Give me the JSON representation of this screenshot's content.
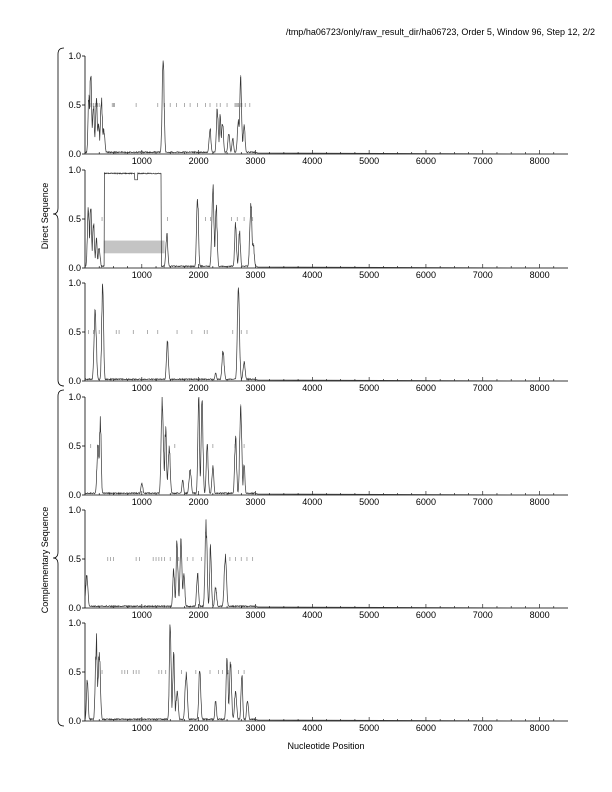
{
  "header": {
    "path": "/tmp/ha06723/only/raw_result_dir/ha06723, Order 5, Window 96, Step 12, 2/2"
  },
  "groups": {
    "direct": "Direct Sequence",
    "complementary": "Complementary Sequence"
  },
  "xlabel": "Nucleotide Position",
  "chart_data": [
    {
      "type": "line",
      "panel": 1,
      "group": "Direct Sequence",
      "xlim": [
        0,
        8500
      ],
      "ylim": [
        0,
        1
      ],
      "yticks": [
        "0.0",
        "0.5",
        "1.0"
      ],
      "xticks": [
        "1000",
        "2000",
        "3000",
        "4000",
        "5000",
        "6000",
        "7000",
        "8000"
      ],
      "peaks": [
        [
          70,
          0.6
        ],
        [
          100,
          0.78
        ],
        [
          150,
          0.45
        ],
        [
          200,
          0.55
        ],
        [
          240,
          0.3
        ],
        [
          290,
          0.52
        ],
        [
          330,
          0.25
        ],
        [
          1375,
          0.95
        ],
        [
          2200,
          0.25
        ],
        [
          2330,
          0.45
        ],
        [
          2380,
          0.38
        ],
        [
          2420,
          0.3
        ],
        [
          2530,
          0.2
        ],
        [
          2600,
          0.15
        ],
        [
          2700,
          0.35
        ],
        [
          2740,
          0.8
        ],
        [
          2800,
          0.3
        ]
      ],
      "threshold_ticks": [
        [
          90,
          0.5
        ],
        [
          120,
          0.5
        ],
        [
          150,
          0.5
        ],
        [
          180,
          0.5
        ],
        [
          220,
          0.5
        ],
        [
          250,
          0.5
        ],
        [
          480,
          0.5
        ],
        [
          500,
          0.5
        ],
        [
          520,
          0.5
        ],
        [
          900,
          0.5
        ],
        [
          1280,
          0.5
        ],
        [
          1400,
          0.5
        ],
        [
          1500,
          0.5
        ],
        [
          1610,
          0.5
        ],
        [
          1750,
          0.5
        ],
        [
          1850,
          0.5
        ],
        [
          1980,
          0.5
        ],
        [
          2120,
          0.5
        ],
        [
          2200,
          0.5
        ],
        [
          2320,
          0.5
        ],
        [
          2380,
          0.5
        ],
        [
          2500,
          0.5
        ],
        [
          2640,
          0.5
        ],
        [
          2660,
          0.5
        ],
        [
          2680,
          0.5
        ],
        [
          2700,
          0.5
        ],
        [
          2730,
          0.5
        ],
        [
          2760,
          0.5
        ],
        [
          2820,
          0.5
        ],
        [
          2900,
          0.5
        ]
      ]
    },
    {
      "type": "line",
      "panel": 2,
      "group": "Direct Sequence",
      "xlim": [
        0,
        8500
      ],
      "ylim": [
        0,
        1
      ],
      "yticks": [
        "0.0",
        "0.5",
        "1.0"
      ],
      "xticks": [
        "1000",
        "2000",
        "3000",
        "4000",
        "5000",
        "6000",
        "7000",
        "8000"
      ],
      "peaks": [
        [
          60,
          0.58
        ],
        [
          100,
          0.6
        ],
        [
          150,
          0.42
        ],
        [
          200,
          0.3
        ],
        [
          250,
          0.2
        ],
        [
          1440,
          0.35
        ],
        [
          1980,
          0.7
        ],
        [
          2250,
          0.8
        ],
        [
          2310,
          0.6
        ],
        [
          2650,
          0.42
        ],
        [
          2720,
          0.35
        ],
        [
          2920,
          0.62
        ],
        [
          2960,
          0.25
        ]
      ],
      "plateau": {
        "x": [
          340,
          1340
        ],
        "y": 0.97,
        "dip": [
          900,
          0.9
        ]
      },
      "highlight_band": {
        "x": [
          330,
          1400
        ],
        "y": [
          0.15,
          0.28
        ]
      },
      "threshold_ticks": [
        [
          300,
          0.5
        ],
        [
          1450,
          0.5
        ],
        [
          2120,
          0.5
        ],
        [
          2210,
          0.5
        ],
        [
          2580,
          0.5
        ],
        [
          2680,
          0.5
        ],
        [
          2800,
          0.5
        ],
        [
          2950,
          0.5
        ]
      ]
    },
    {
      "type": "line",
      "panel": 3,
      "group": "Direct Sequence",
      "xlim": [
        0,
        8500
      ],
      "ylim": [
        0,
        1
      ],
      "yticks": [
        "0.0",
        "0.5",
        "1.0"
      ],
      "xticks": [
        "1000",
        "2000",
        "3000",
        "4000",
        "5000",
        "6000",
        "7000",
        "8000"
      ],
      "peaks": [
        [
          180,
          0.72
        ],
        [
          310,
          0.97
        ],
        [
          1450,
          0.4
        ],
        [
          2300,
          0.08
        ],
        [
          2430,
          0.28
        ],
        [
          2700,
          0.95
        ],
        [
          2800,
          0.2
        ]
      ],
      "threshold_ticks": [
        [
          60,
          0.5
        ],
        [
          150,
          0.5
        ],
        [
          250,
          0.5
        ],
        [
          550,
          0.5
        ],
        [
          600,
          0.5
        ],
        [
          850,
          0.5
        ],
        [
          1100,
          0.5
        ],
        [
          1280,
          0.5
        ],
        [
          1620,
          0.5
        ],
        [
          1880,
          0.5
        ],
        [
          2100,
          0.5
        ],
        [
          2150,
          0.5
        ],
        [
          2600,
          0.5
        ],
        [
          2750,
          0.5
        ],
        [
          2850,
          0.5
        ]
      ]
    },
    {
      "type": "line",
      "panel": 4,
      "group": "Complementary Sequence",
      "xlim": [
        0,
        8500
      ],
      "ylim": [
        0,
        1
      ],
      "yticks": [
        "0.0",
        "0.5",
        "1.0"
      ],
      "xticks": [
        "1000",
        "2000",
        "3000",
        "4000",
        "5000",
        "6000",
        "7000",
        "8000"
      ],
      "peaks": [
        [
          230,
          0.5
        ],
        [
          270,
          0.8
        ],
        [
          1000,
          0.12
        ],
        [
          1360,
          0.9
        ],
        [
          1420,
          0.7
        ],
        [
          1480,
          0.5
        ],
        [
          1720,
          0.15
        ],
        [
          1850,
          0.25
        ],
        [
          2000,
          0.98
        ],
        [
          2060,
          0.95
        ],
        [
          2150,
          0.5
        ],
        [
          2250,
          0.3
        ],
        [
          2650,
          0.6
        ],
        [
          2740,
          0.92
        ],
        [
          2800,
          0.3
        ]
      ],
      "threshold_ticks": [
        [
          100,
          0.5
        ],
        [
          1580,
          0.5
        ],
        [
          2150,
          0.5
        ],
        [
          2250,
          0.5
        ],
        [
          2640,
          0.5
        ],
        [
          2800,
          0.5
        ]
      ]
    },
    {
      "type": "line",
      "panel": 5,
      "group": "Complementary Sequence",
      "xlim": [
        0,
        8500
      ],
      "ylim": [
        0,
        1
      ],
      "yticks": [
        "0.0",
        "0.5",
        "1.0"
      ],
      "xticks": [
        "1000",
        "2000",
        "3000",
        "4000",
        "5000",
        "6000",
        "7000",
        "8000"
      ],
      "peaks": [
        [
          30,
          0.32
        ],
        [
          1560,
          0.4
        ],
        [
          1620,
          0.65
        ],
        [
          1690,
          0.7
        ],
        [
          1740,
          0.35
        ],
        [
          1980,
          0.35
        ],
        [
          2130,
          0.9
        ],
        [
          2210,
          0.65
        ],
        [
          2300,
          0.2
        ],
        [
          2470,
          0.55
        ]
      ],
      "threshold_ticks": [
        [
          400,
          0.5
        ],
        [
          450,
          0.5
        ],
        [
          500,
          0.5
        ],
        [
          900,
          0.5
        ],
        [
          960,
          0.5
        ],
        [
          1200,
          0.5
        ],
        [
          1250,
          0.5
        ],
        [
          1300,
          0.5
        ],
        [
          1350,
          0.5
        ],
        [
          1400,
          0.5
        ],
        [
          1500,
          0.5
        ],
        [
          1650,
          0.5
        ],
        [
          1800,
          0.5
        ],
        [
          1900,
          0.5
        ],
        [
          2050,
          0.5
        ],
        [
          2550,
          0.5
        ],
        [
          2650,
          0.5
        ],
        [
          2750,
          0.5
        ],
        [
          2850,
          0.5
        ],
        [
          2950,
          0.5
        ]
      ]
    },
    {
      "type": "line",
      "panel": 6,
      "group": "Complementary Sequence",
      "xlim": [
        0,
        8500
      ],
      "ylim": [
        0,
        1
      ],
      "yticks": [
        "0.0",
        "0.5",
        "1.0"
      ],
      "xticks": [
        "1000",
        "2000",
        "3000",
        "4000",
        "5000",
        "6000",
        "7000",
        "8000"
      ],
      "peaks": [
        [
          40,
          0.4
        ],
        [
          200,
          0.8
        ],
        [
          250,
          0.7
        ],
        [
          1500,
          0.95
        ],
        [
          1560,
          0.7
        ],
        [
          1620,
          0.3
        ],
        [
          1780,
          0.5
        ],
        [
          2020,
          0.5
        ],
        [
          2300,
          0.2
        ],
        [
          2500,
          0.62
        ],
        [
          2560,
          0.55
        ],
        [
          2650,
          0.3
        ],
        [
          2760,
          0.45
        ],
        [
          2860,
          0.2
        ]
      ],
      "threshold_ticks": [
        [
          300,
          0.5
        ],
        [
          650,
          0.5
        ],
        [
          700,
          0.5
        ],
        [
          750,
          0.5
        ],
        [
          850,
          0.5
        ],
        [
          900,
          0.5
        ],
        [
          950,
          0.5
        ],
        [
          1300,
          0.5
        ],
        [
          1350,
          0.5
        ],
        [
          1420,
          0.5
        ],
        [
          1700,
          0.5
        ],
        [
          1950,
          0.5
        ],
        [
          2200,
          0.5
        ],
        [
          2350,
          0.5
        ],
        [
          2420,
          0.5
        ],
        [
          2520,
          0.5
        ],
        [
          2700,
          0.5
        ],
        [
          2800,
          0.5
        ]
      ]
    }
  ]
}
